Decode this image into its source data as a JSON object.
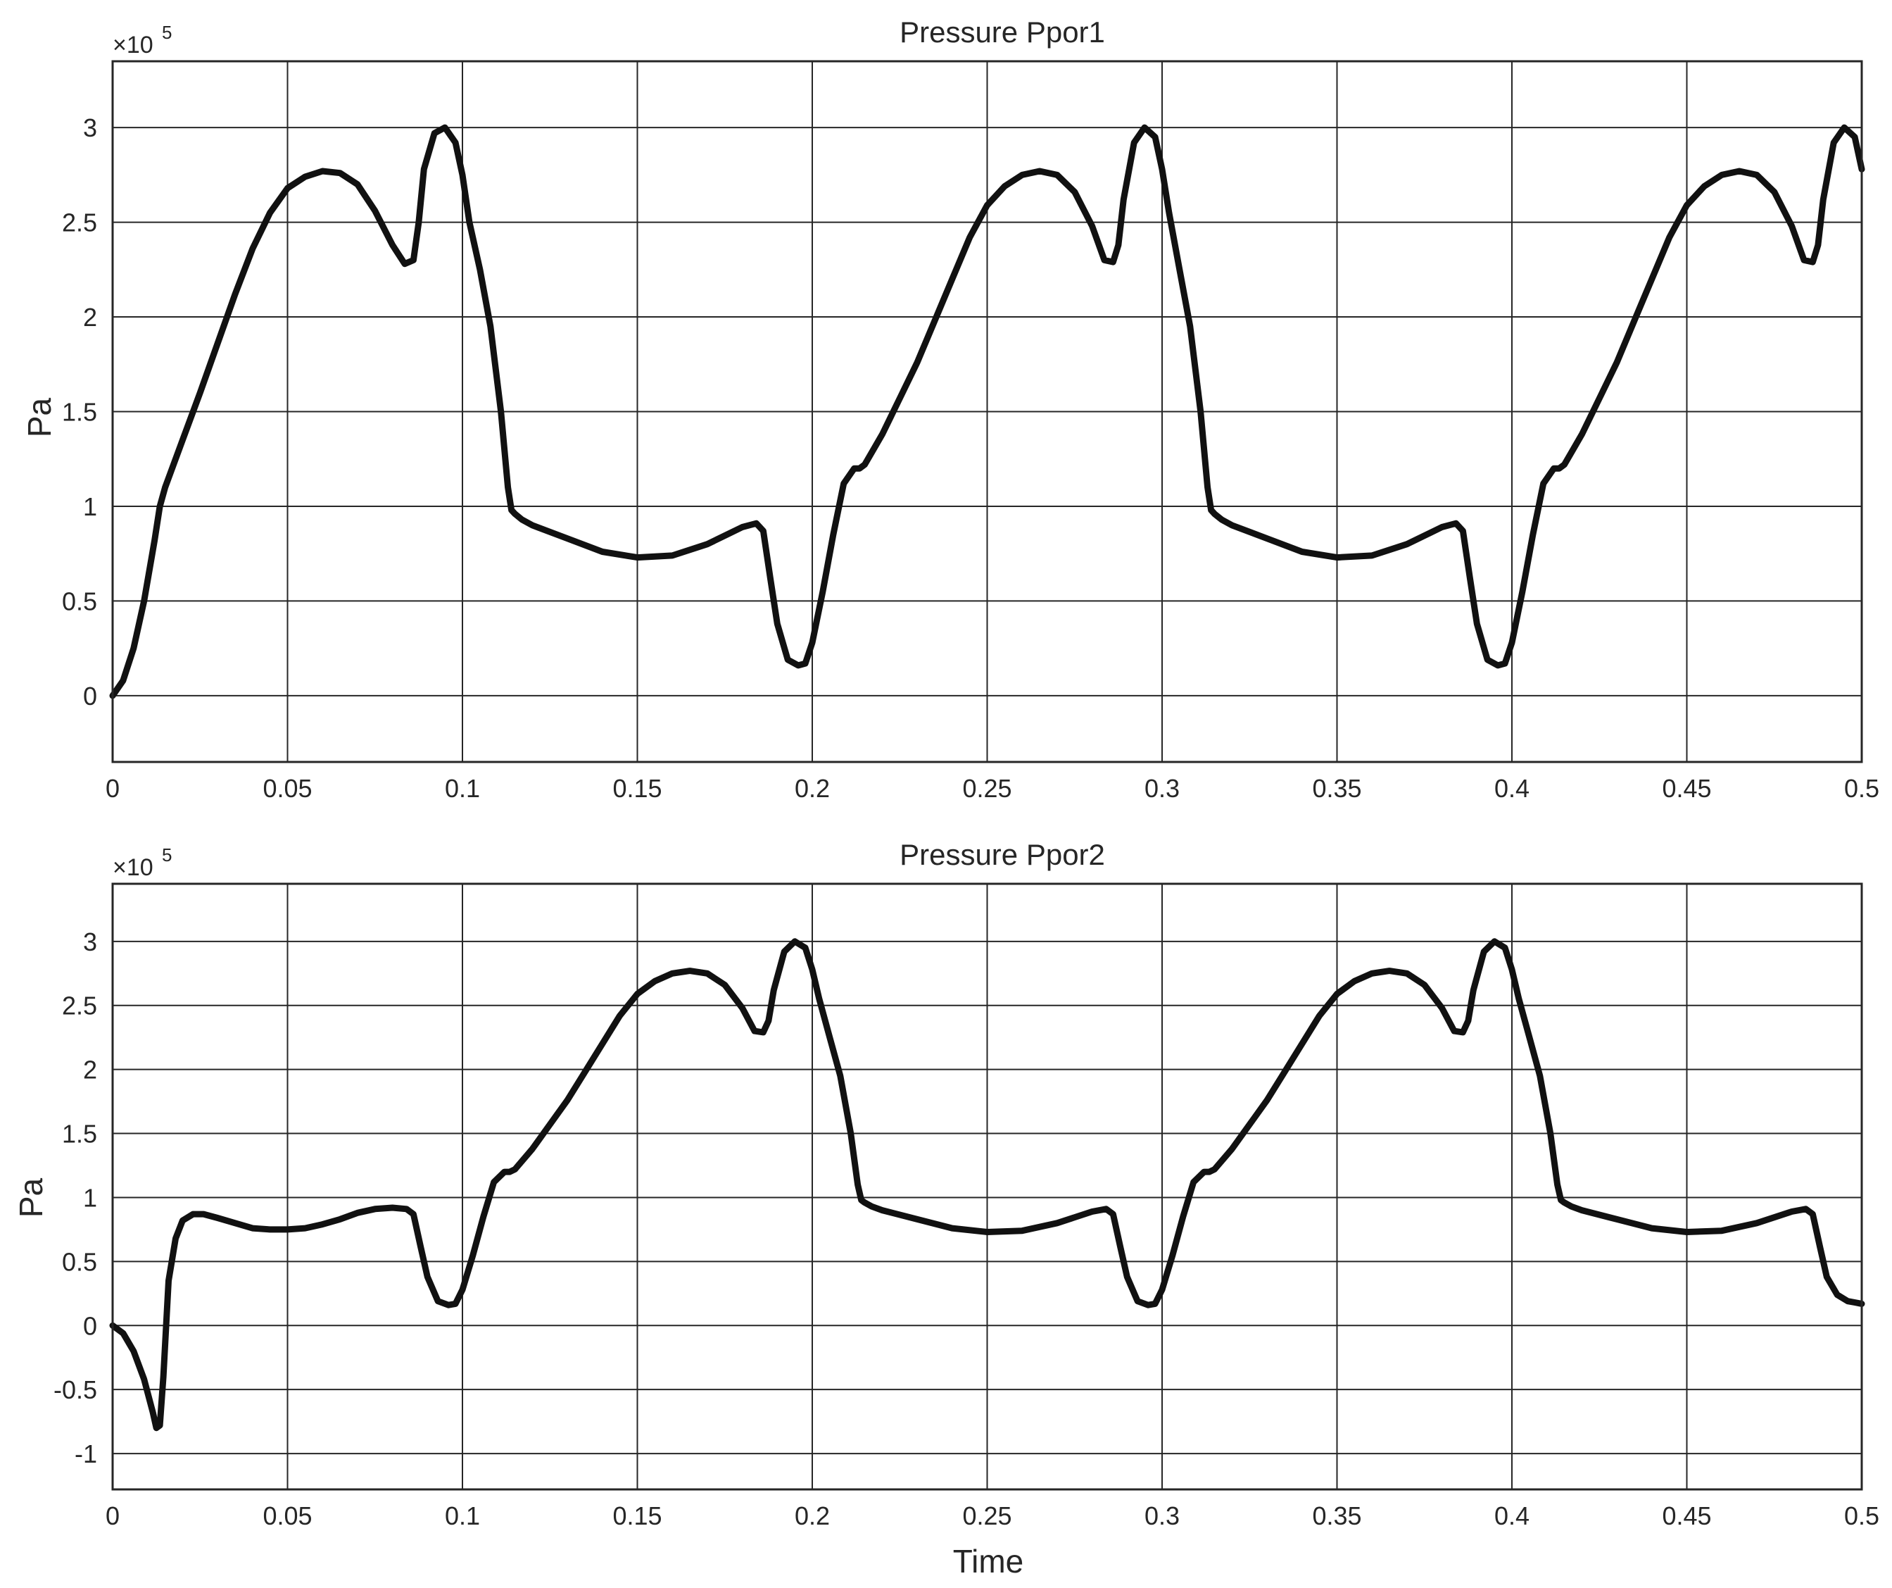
{
  "colors": {
    "series": "#111111",
    "axis": "#262626",
    "background": "#ffffff"
  },
  "chart_data": [
    {
      "type": "line",
      "title": "Pressure Ppor1",
      "xlabel": "",
      "ylabel": "Pa",
      "exponent_label": "×10",
      "exponent_power": "5",
      "xlim": [
        0,
        0.5
      ],
      "ylim": [
        -0.35,
        3.35
      ],
      "grid": true,
      "xticks": [
        0,
        0.05,
        0.1,
        0.15,
        0.2,
        0.25,
        0.3,
        0.35,
        0.4,
        0.45,
        0.5
      ],
      "xtick_labels": [
        "0",
        "0.05",
        "0.1",
        "0.15",
        "0.2",
        "0.25",
        "0.3",
        "0.35",
        "0.4",
        "0.45",
        "0.5"
      ],
      "yticks": [
        0,
        0.5,
        1,
        1.5,
        2,
        2.5,
        3
      ],
      "ytick_labels": [
        "0",
        "0.5",
        "1",
        "1.5",
        "2",
        "2.5",
        "3"
      ],
      "series": [
        {
          "x": [
            0,
            0.003,
            0.006,
            0.009,
            0.012,
            0.0135,
            0.015,
            0.02,
            0.025,
            0.03,
            0.035,
            0.04,
            0.045,
            0.05,
            0.055,
            0.06,
            0.065,
            0.07,
            0.075,
            0.08,
            0.0835,
            0.086,
            0.0875,
            0.089,
            0.092,
            0.095,
            0.098,
            0.1,
            0.102,
            0.105,
            0.108,
            0.111,
            0.113,
            0.114,
            0.115,
            0.117,
            0.12,
            0.13,
            0.14,
            0.15,
            0.16,
            0.17,
            0.18,
            0.184,
            0.186,
            0.188,
            0.19,
            0.193,
            0.196,
            0.198,
            0.2,
            0.203,
            0.206,
            0.209,
            0.212,
            0.2135,
            0.215,
            0.22,
            0.225,
            0.23,
            0.235,
            0.24,
            0.245,
            0.25,
            0.255,
            0.26,
            0.265,
            0.27,
            0.275,
            0.28,
            0.2835,
            0.286,
            0.2875,
            0.289,
            0.292,
            0.295,
            0.298,
            0.3,
            0.302,
            0.305,
            0.308,
            0.311,
            0.313,
            0.314,
            0.315,
            0.317,
            0.32,
            0.33,
            0.34,
            0.35,
            0.36,
            0.37,
            0.38,
            0.384,
            0.386,
            0.388,
            0.39,
            0.393,
            0.396,
            0.398,
            0.4,
            0.403,
            0.406,
            0.409,
            0.412,
            0.4135,
            0.415,
            0.42,
            0.425,
            0.43,
            0.435,
            0.44,
            0.445,
            0.45,
            0.455,
            0.46,
            0.465,
            0.47,
            0.475,
            0.48,
            0.4835,
            0.486,
            0.4875,
            0.489,
            0.492,
            0.495,
            0.498,
            0.5
          ],
          "y": [
            0,
            0.08,
            0.25,
            0.5,
            0.82,
            1.0,
            1.1,
            1.35,
            1.6,
            1.86,
            2.12,
            2.36,
            2.55,
            2.68,
            2.74,
            2.77,
            2.76,
            2.7,
            2.56,
            2.38,
            2.28,
            2.3,
            2.5,
            2.78,
            2.97,
            3.0,
            2.92,
            2.75,
            2.5,
            2.25,
            1.95,
            1.5,
            1.1,
            0.98,
            0.96,
            0.93,
            0.9,
            0.83,
            0.76,
            0.73,
            0.74,
            0.8,
            0.89,
            0.91,
            0.87,
            0.62,
            0.38,
            0.19,
            0.16,
            0.17,
            0.28,
            0.55,
            0.85,
            1.12,
            1.2,
            1.2,
            1.22,
            1.38,
            1.57,
            1.76,
            1.98,
            2.2,
            2.42,
            2.59,
            2.69,
            2.75,
            2.77,
            2.75,
            2.66,
            2.48,
            2.3,
            2.29,
            2.38,
            2.62,
            2.92,
            3.0,
            2.95,
            2.78,
            2.55,
            2.25,
            1.95,
            1.5,
            1.1,
            0.98,
            0.96,
            0.93,
            0.9,
            0.83,
            0.76,
            0.73,
            0.74,
            0.8,
            0.89,
            0.91,
            0.87,
            0.62,
            0.38,
            0.19,
            0.16,
            0.17,
            0.28,
            0.55,
            0.85,
            1.12,
            1.2,
            1.2,
            1.22,
            1.38,
            1.57,
            1.76,
            1.98,
            2.2,
            2.42,
            2.59,
            2.69,
            2.75,
            2.77,
            2.75,
            2.66,
            2.48,
            2.3,
            2.29,
            2.38,
            2.62,
            2.92,
            3.0,
            2.95,
            2.78
          ]
        }
      ]
    },
    {
      "type": "line",
      "title": "Pressure Ppor2",
      "xlabel": "Time",
      "ylabel": "Pa",
      "exponent_label": "×10",
      "exponent_power": "5",
      "xlim": [
        0,
        0.5
      ],
      "ylim": [
        -1.28,
        3.45
      ],
      "grid": true,
      "xticks": [
        0,
        0.05,
        0.1,
        0.15,
        0.2,
        0.25,
        0.3,
        0.35,
        0.4,
        0.45,
        0.5
      ],
      "xtick_labels": [
        "0",
        "0.05",
        "0.1",
        "0.15",
        "0.2",
        "0.25",
        "0.3",
        "0.35",
        "0.4",
        "0.45",
        "0.5"
      ],
      "yticks": [
        -1,
        -0.5,
        0,
        0.5,
        1,
        1.5,
        2,
        2.5,
        3
      ],
      "ytick_labels": [
        "-1",
        "-0.5",
        "0",
        "0.5",
        "1",
        "1.5",
        "2",
        "2.5",
        "3"
      ],
      "series": [
        {
          "x": [
            0,
            0.003,
            0.006,
            0.009,
            0.0115,
            0.0125,
            0.0135,
            0.0145,
            0.016,
            0.018,
            0.02,
            0.023,
            0.026,
            0.03,
            0.035,
            0.04,
            0.045,
            0.05,
            0.055,
            0.06,
            0.065,
            0.07,
            0.075,
            0.08,
            0.084,
            0.086,
            0.088,
            0.09,
            0.093,
            0.096,
            0.098,
            0.1,
            0.103,
            0.106,
            0.109,
            0.112,
            0.1135,
            0.115,
            0.12,
            0.125,
            0.13,
            0.135,
            0.14,
            0.145,
            0.15,
            0.155,
            0.16,
            0.165,
            0.17,
            0.175,
            0.18,
            0.1835,
            0.186,
            0.1875,
            0.189,
            0.192,
            0.195,
            0.198,
            0.2,
            0.202,
            0.205,
            0.208,
            0.211,
            0.213,
            0.214,
            0.215,
            0.217,
            0.22,
            0.23,
            0.24,
            0.25,
            0.26,
            0.27,
            0.28,
            0.284,
            0.286,
            0.288,
            0.29,
            0.293,
            0.296,
            0.298,
            0.3,
            0.303,
            0.306,
            0.309,
            0.312,
            0.3135,
            0.315,
            0.32,
            0.325,
            0.33,
            0.335,
            0.34,
            0.345,
            0.35,
            0.355,
            0.36,
            0.365,
            0.37,
            0.375,
            0.38,
            0.3835,
            0.386,
            0.3875,
            0.389,
            0.392,
            0.395,
            0.398,
            0.4,
            0.402,
            0.405,
            0.408,
            0.411,
            0.413,
            0.414,
            0.415,
            0.417,
            0.42,
            0.43,
            0.44,
            0.45,
            0.46,
            0.47,
            0.48,
            0.484,
            0.486,
            0.488,
            0.49,
            0.493,
            0.496,
            0.498,
            0.5
          ],
          "y": [
            0,
            -0.06,
            -0.2,
            -0.42,
            -0.68,
            -0.8,
            -0.78,
            -0.4,
            0.35,
            0.68,
            0.82,
            0.87,
            0.87,
            0.84,
            0.8,
            0.76,
            0.75,
            0.75,
            0.76,
            0.79,
            0.83,
            0.88,
            0.91,
            0.92,
            0.91,
            0.87,
            0.62,
            0.38,
            0.19,
            0.16,
            0.17,
            0.28,
            0.55,
            0.85,
            1.12,
            1.2,
            1.2,
            1.22,
            1.38,
            1.57,
            1.76,
            1.98,
            2.2,
            2.42,
            2.59,
            2.69,
            2.75,
            2.77,
            2.75,
            2.66,
            2.48,
            2.3,
            2.29,
            2.38,
            2.62,
            2.92,
            3.0,
            2.95,
            2.78,
            2.55,
            2.25,
            1.95,
            1.5,
            1.1,
            0.98,
            0.96,
            0.93,
            0.9,
            0.83,
            0.76,
            0.73,
            0.74,
            0.8,
            0.89,
            0.91,
            0.87,
            0.62,
            0.38,
            0.19,
            0.16,
            0.17,
            0.28,
            0.55,
            0.85,
            1.12,
            1.2,
            1.2,
            1.22,
            1.38,
            1.57,
            1.76,
            1.98,
            2.2,
            2.42,
            2.59,
            2.69,
            2.75,
            2.77,
            2.75,
            2.66,
            2.48,
            2.3,
            2.29,
            2.38,
            2.62,
            2.92,
            3.0,
            2.95,
            2.78,
            2.55,
            2.25,
            1.95,
            1.5,
            1.1,
            0.98,
            0.96,
            0.93,
            0.9,
            0.83,
            0.76,
            0.73,
            0.74,
            0.8,
            0.89,
            0.91,
            0.87,
            0.62,
            0.38,
            0.24,
            0.19,
            0.18,
            0.17
          ]
        }
      ]
    }
  ]
}
